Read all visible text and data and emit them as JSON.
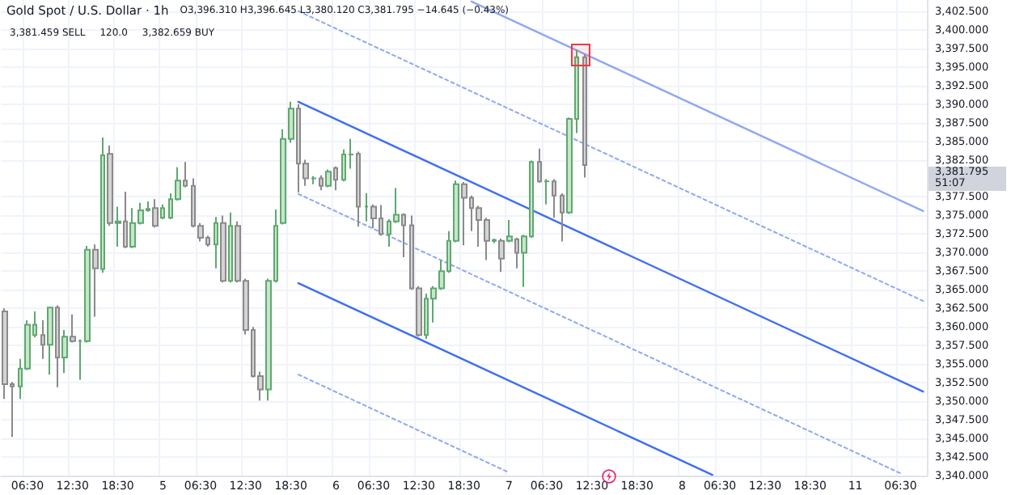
{
  "chart_data": {
    "type": "candlestick",
    "title": "Gold Spot / U.S. Dollar · 1h",
    "annotations": [
      "O3,396.310 H3,396.645 L3,380.120 C3,381.795 −14.645 (−0.43%)",
      "3,381.459 SELL",
      "120.0",
      "3,382.659 BUY",
      "3,381.795",
      "51:07"
    ],
    "categories": [
      null,
      null,
      null,
      "06:30",
      null,
      null,
      null,
      null,
      null,
      "12:30",
      null,
      null,
      null,
      null,
      null,
      "18:30",
      null,
      null,
      null,
      null,
      null,
      "5",
      null,
      null,
      null,
      null,
      "06:30",
      null,
      null,
      null,
      null,
      null,
      "12:30",
      null,
      null,
      null,
      null,
      null,
      "18:30",
      null,
      null,
      null,
      null,
      null,
      "6",
      null,
      null,
      null,
      null,
      "06:30",
      null,
      null,
      null,
      null,
      null,
      "12:30",
      null,
      null,
      null,
      null,
      null,
      "18:30",
      null,
      null,
      null,
      null,
      null,
      "7",
      null,
      null,
      null,
      null,
      "06:30",
      null,
      null,
      null,
      null,
      null,
      "12:30",
      null,
      null,
      null,
      null,
      null,
      "18:30",
      null,
      null,
      null,
      null,
      null,
      "8",
      null,
      null,
      null,
      null,
      "06:30",
      null,
      null,
      null,
      null,
      null,
      "12:30",
      null,
      null,
      null,
      null,
      null,
      "18:30",
      null,
      null,
      null,
      null,
      null,
      "11",
      null,
      null,
      null,
      null,
      null,
      "06:30",
      null,
      null,
      null
    ],
    "ohlc": [
      [
        3362.1,
        3362.5,
        3350.3,
        3352.3
      ],
      [
        3352.3,
        3352.6,
        3345.2,
        3352.0
      ],
      [
        3352.0,
        3355.7,
        3350.3,
        3354.4
      ],
      [
        3354.4,
        3360.9,
        3354.2,
        3360.3
      ],
      [
        3358.9,
        3362.1,
        3358.6,
        3360.3
      ],
      [
        3358.9,
        3360.9,
        3355.7,
        3357.6
      ],
      [
        3357.6,
        3362.6,
        3353.6,
        3362.6
      ],
      [
        3362.6,
        3362.9,
        3351.9,
        3355.9
      ],
      [
        3355.9,
        3359.6,
        3353.8,
        3358.7
      ],
      [
        3358.7,
        3361.7,
        3357.9,
        3358.1
      ],
      [
        3358.1,
        3358.3,
        3352.9,
        3358.1
      ],
      [
        3358.1,
        3370.9,
        3357.9,
        3370.4
      ],
      [
        3370.4,
        3371.1,
        3361.4,
        3367.9
      ],
      [
        3367.8,
        3385.5,
        3367.3,
        3383.1
      ],
      [
        3383.3,
        3384.4,
        3373.6,
        3374.0
      ],
      [
        3374.0,
        3376.2,
        3370.8,
        3374.2
      ],
      [
        3374.2,
        3378.2,
        3370.6,
        3370.8
      ],
      [
        3370.8,
        3376.0,
        3370.6,
        3374.0
      ],
      [
        3374.0,
        3376.7,
        3373.8,
        3375.7
      ],
      [
        3375.7,
        3376.9,
        3375.5,
        3375.9
      ],
      [
        3376.0,
        3377.2,
        3373.4,
        3373.6
      ],
      [
        3374.7,
        3376.5,
        3374.5,
        3376.0
      ],
      [
        3374.7,
        3378.0,
        3374.5,
        3377.2
      ],
      [
        3377.2,
        3381.5,
        3377.0,
        3379.7
      ],
      [
        3379.7,
        3382.2,
        3378.8,
        3379.0
      ],
      [
        3379.0,
        3380.0,
        3373.4,
        3373.6
      ],
      [
        3373.6,
        3374.0,
        3371.5,
        3372.0
      ],
      [
        3372.0,
        3372.3,
        3370.8,
        3371.1
      ],
      [
        3371.1,
        3374.8,
        3367.9,
        3374.0
      ],
      [
        3374.0,
        3375.0,
        3366.0,
        3366.2
      ],
      [
        3366.2,
        3375.4,
        3366.0,
        3373.6
      ],
      [
        3373.6,
        3374.2,
        3366.0,
        3366.2
      ],
      [
        3366.2,
        3366.5,
        3359.0,
        3359.6
      ],
      [
        3359.6,
        3360.0,
        3353.2,
        3353.4
      ],
      [
        3353.4,
        3354.0,
        3350.1,
        3351.6
      ],
      [
        3351.6,
        3366.5,
        3350.1,
        3366.2
      ],
      [
        3366.2,
        3375.8,
        3366.0,
        3373.6
      ],
      [
        3374.0,
        3386.6,
        3373.8,
        3385.3
      ],
      [
        3385.3,
        3390.3,
        3384.8,
        3389.4
      ],
      [
        3389.4,
        3390.0,
        3378.1,
        3382.0
      ],
      [
        3382.0,
        3382.5,
        3379.0,
        3380.0
      ],
      [
        3380.0,
        3380.3,
        3379.2,
        3380.0
      ],
      [
        3380.0,
        3380.4,
        3378.4,
        3379.0
      ],
      [
        3379.0,
        3381.2,
        3378.8,
        3380.9
      ],
      [
        3381.4,
        3381.6,
        3378.4,
        3379.8
      ],
      [
        3379.8,
        3383.9,
        3379.6,
        3383.2
      ],
      [
        3383.2,
        3385.3,
        3381.3,
        3383.2
      ],
      [
        3383.3,
        3383.6,
        3373.5,
        3376.2
      ],
      [
        3376.2,
        3378.0,
        3374.2,
        3376.2
      ],
      [
        3376.2,
        3376.5,
        3373.3,
        3374.6
      ],
      [
        3374.6,
        3376.4,
        3372.3,
        3372.5
      ],
      [
        3372.5,
        3374.5,
        3370.8,
        3374.2
      ],
      [
        3374.2,
        3378.7,
        3374.0,
        3375.1
      ],
      [
        3375.1,
        3375.3,
        3369.4,
        3373.7
      ],
      [
        3373.7,
        3375.0,
        3365.0,
        3365.2
      ],
      [
        3365.2,
        3365.5,
        3358.7,
        3358.9
      ],
      [
        3358.9,
        3364.5,
        3358.4,
        3363.8
      ],
      [
        3363.8,
        3365.5,
        3360.6,
        3365.2
      ],
      [
        3365.2,
        3369.0,
        3365.0,
        3367.5
      ],
      [
        3367.5,
        3372.9,
        3367.3,
        3371.6
      ],
      [
        3371.6,
        3379.7,
        3371.4,
        3379.2
      ],
      [
        3379.2,
        3379.5,
        3371.0,
        3377.4
      ],
      [
        3377.4,
        3377.7,
        3372.9,
        3376.0
      ],
      [
        3376.0,
        3376.3,
        3370.8,
        3374.4
      ],
      [
        3374.4,
        3374.7,
        3369.0,
        3371.6
      ],
      [
        3371.6,
        3371.9,
        3371.3,
        3371.7
      ],
      [
        3371.6,
        3371.9,
        3367.4,
        3369.2
      ],
      [
        3371.6,
        3374.4,
        3371.4,
        3372.2
      ],
      [
        3371.8,
        3372.0,
        3367.9,
        3370.0
      ],
      [
        3370.0,
        3372.4,
        3365.4,
        3372.2
      ],
      [
        3372.2,
        3382.4,
        3372.0,
        3382.2
      ],
      [
        3382.2,
        3384.0,
        3379.4,
        3379.6
      ],
      [
        3379.6,
        3379.9,
        3376.5,
        3379.6
      ],
      [
        3379.6,
        3379.9,
        3374.7,
        3377.7
      ],
      [
        3377.7,
        3378.0,
        3371.5,
        3375.4
      ],
      [
        3375.4,
        3388.2,
        3375.2,
        3388.0
      ],
      [
        3388.0,
        3397.3,
        3386.1,
        3396.31
      ],
      [
        3396.31,
        3396.645,
        3380.12,
        3381.795
      ],
      null,
      null,
      null,
      null,
      null,
      null,
      null,
      null,
      null,
      null,
      null,
      null,
      null,
      null,
      null,
      null,
      null,
      null,
      null,
      null,
      null,
      null,
      null,
      null,
      null,
      null,
      null,
      null,
      null,
      null,
      null,
      null,
      null,
      null,
      null,
      null,
      null,
      null,
      null,
      null,
      null,
      null,
      null,
      null,
      null
    ],
    "series": [
      {
        "type": "line",
        "color": "#8fa8f2",
        "line_style": "solid",
        "values": [
          null,
          null,
          null,
          null,
          null,
          null,
          null,
          null,
          null,
          null,
          null,
          null,
          null,
          null,
          null,
          null,
          null,
          null,
          null,
          null,
          null,
          null,
          null,
          null,
          null,
          null,
          null,
          null,
          null,
          null,
          null,
          null,
          null,
          null,
          null,
          null,
          null,
          null,
          null,
          null,
          null,
          null,
          null,
          null,
          null,
          null,
          null,
          null,
          null,
          null,
          null,
          null,
          null,
          null,
          null,
          null,
          null,
          null,
          null,
          null,
          null,
          null,
          3403.8,
          null,
          null,
          null,
          null,
          null,
          null,
          null,
          null,
          null,
          null,
          null,
          null,
          null,
          null,
          null,
          null,
          null,
          null,
          null,
          null,
          null,
          null,
          null,
          null,
          null,
          null,
          null,
          null,
          null,
          null,
          null,
          null,
          null,
          null,
          null,
          null,
          null,
          null,
          null,
          null,
          null,
          null,
          null,
          null,
          null,
          null,
          null,
          null,
          null,
          null,
          null,
          null,
          null,
          null,
          null,
          null,
          null,
          null,
          null,
          3375.6
        ]
      },
      {
        "type": "line",
        "color": "#8fa8f2",
        "line_style": "dashed",
        "values": [
          null,
          null,
          null,
          null,
          null,
          null,
          null,
          null,
          null,
          null,
          null,
          null,
          null,
          null,
          null,
          null,
          null,
          null,
          null,
          null,
          null,
          null,
          null,
          null,
          null,
          null,
          null,
          null,
          null,
          null,
          null,
          null,
          null,
          null,
          null,
          null,
          null,
          null,
          null,
          3402.5,
          null,
          null,
          null,
          null,
          null,
          null,
          null,
          null,
          null,
          null,
          null,
          null,
          null,
          null,
          null,
          null,
          null,
          null,
          null,
          null,
          null,
          null,
          null,
          null,
          null,
          null,
          null,
          null,
          null,
          null,
          null,
          null,
          null,
          null,
          null,
          null,
          null,
          null,
          null,
          null,
          null,
          null,
          null,
          null,
          null,
          null,
          null,
          null,
          null,
          null,
          null,
          null,
          null,
          null,
          null,
          null,
          null,
          null,
          null,
          null,
          null,
          null,
          null,
          null,
          null,
          null,
          null,
          null,
          null,
          null,
          null,
          null,
          null,
          null,
          null,
          null,
          null,
          null,
          null,
          null,
          null,
          null,
          3363.5
        ]
      },
      {
        "type": "line",
        "color": "#3d6ef5",
        "line_style": "solid",
        "values": [
          null,
          null,
          null,
          null,
          null,
          null,
          null,
          null,
          null,
          null,
          null,
          null,
          null,
          null,
          null,
          null,
          null,
          null,
          null,
          null,
          null,
          null,
          null,
          null,
          null,
          null,
          null,
          null,
          null,
          null,
          null,
          null,
          null,
          null,
          null,
          null,
          null,
          null,
          null,
          3390.3,
          null,
          null,
          null,
          null,
          null,
          null,
          null,
          null,
          null,
          null,
          null,
          null,
          null,
          null,
          null,
          null,
          null,
          null,
          null,
          null,
          null,
          null,
          null,
          null,
          null,
          null,
          null,
          null,
          null,
          null,
          null,
          null,
          null,
          null,
          null,
          null,
          null,
          null,
          null,
          null,
          null,
          null,
          null,
          null,
          null,
          null,
          null,
          null,
          null,
          null,
          null,
          null,
          null,
          null,
          null,
          null,
          null,
          null,
          null,
          null,
          null,
          null,
          null,
          null,
          null,
          null,
          null,
          null,
          null,
          null,
          null,
          null,
          null,
          null,
          null,
          null,
          null,
          null,
          null,
          null,
          null,
          null,
          3351.3
        ]
      },
      {
        "type": "line",
        "color": "#8fa8f2",
        "line_style": "dashed",
        "values": [
          null,
          null,
          null,
          null,
          null,
          null,
          null,
          null,
          null,
          null,
          null,
          null,
          null,
          null,
          null,
          null,
          null,
          null,
          null,
          null,
          null,
          null,
          null,
          null,
          null,
          null,
          null,
          null,
          null,
          null,
          null,
          null,
          null,
          null,
          null,
          null,
          null,
          null,
          null,
          3377.9,
          null,
          null,
          null,
          null,
          null,
          null,
          null,
          null,
          null,
          null,
          null,
          null,
          null,
          null,
          null,
          null,
          null,
          null,
          null,
          null,
          null,
          null,
          null,
          null,
          null,
          null,
          null,
          null,
          null,
          null,
          null,
          null,
          null,
          null,
          null,
          null,
          null,
          null,
          null,
          null,
          null,
          null,
          null,
          null,
          null,
          null,
          null,
          null,
          null,
          null,
          null,
          null,
          null,
          null,
          null,
          null,
          null,
          null,
          null,
          null,
          null,
          null,
          null,
          null,
          null,
          null,
          null,
          null,
          null,
          null,
          null,
          null,
          null,
          null,
          null,
          null,
          null,
          null,
          null,
          3340.3,
          null,
          null,
          null
        ]
      },
      {
        "type": "line",
        "color": "#3d6ef5",
        "line_style": "solid",
        "values": [
          null,
          null,
          null,
          null,
          null,
          null,
          null,
          null,
          null,
          null,
          null,
          null,
          null,
          null,
          null,
          null,
          null,
          null,
          null,
          null,
          null,
          null,
          null,
          null,
          null,
          null,
          null,
          null,
          null,
          null,
          null,
          null,
          null,
          null,
          null,
          null,
          null,
          null,
          null,
          3365.9,
          null,
          null,
          null,
          null,
          null,
          null,
          null,
          null,
          null,
          null,
          null,
          null,
          null,
          null,
          null,
          null,
          null,
          null,
          null,
          null,
          null,
          null,
          null,
          null,
          null,
          null,
          null,
          null,
          null,
          null,
          null,
          null,
          null,
          null,
          null,
          null,
          null,
          null,
          null,
          null,
          null,
          null,
          null,
          null,
          null,
          null,
          null,
          null,
          null,
          null,
          null,
          null,
          null,
          null,
          3340.1,
          null,
          null,
          null,
          null,
          null,
          null,
          null,
          null,
          null,
          null,
          null,
          null,
          null,
          null,
          null,
          null,
          null,
          null,
          null,
          null,
          null,
          null,
          null,
          null,
          null,
          null,
          null,
          null
        ]
      },
      {
        "type": "line",
        "color": "#8fa8f2",
        "line_style": "dashed",
        "values": [
          null,
          null,
          null,
          null,
          null,
          null,
          null,
          null,
          null,
          null,
          null,
          null,
          null,
          null,
          null,
          null,
          null,
          null,
          null,
          null,
          null,
          null,
          null,
          null,
          null,
          null,
          null,
          null,
          null,
          null,
          null,
          null,
          null,
          null,
          null,
          null,
          null,
          null,
          null,
          3353.6,
          null,
          null,
          null,
          null,
          null,
          null,
          null,
          null,
          null,
          null,
          null,
          null,
          null,
          null,
          null,
          null,
          null,
          null,
          null,
          null,
          null,
          null,
          null,
          null,
          null,
          null,
          null,
          3340.4,
          null,
          null,
          null,
          null,
          null,
          null,
          null,
          null,
          null,
          null,
          null,
          null,
          null,
          null,
          null,
          null,
          null,
          null,
          null,
          null,
          null,
          null,
          null,
          null,
          null,
          null,
          null,
          null,
          null,
          null,
          null,
          null,
          null,
          null,
          null,
          null,
          null,
          null,
          null,
          null,
          null,
          null,
          null,
          null,
          null,
          null,
          null,
          null,
          null,
          null,
          null,
          null,
          null,
          null,
          null
        ]
      }
    ],
    "ylim": [
      3340,
      3404
    ],
    "yticks": [
      {
        "value": 3340,
        "label": "3,340.000"
      },
      {
        "value": 3342.5,
        "label": "3,342.500"
      },
      {
        "value": 3345,
        "label": "3,345.000"
      },
      {
        "value": 3347.5,
        "label": "3,347.500"
      },
      {
        "value": 3350,
        "label": "3,350.000"
      },
      {
        "value": 3352.5,
        "label": "3,352.500"
      },
      {
        "value": 3355,
        "label": "3,355.000"
      },
      {
        "value": 3357.5,
        "label": "3,357.500"
      },
      {
        "value": 3360,
        "label": "3,360.000"
      },
      {
        "value": 3362.5,
        "label": "3,362.500"
      },
      {
        "value": 3365,
        "label": "3,365.000"
      },
      {
        "value": 3367.5,
        "label": "3,367.500"
      },
      {
        "value": 3370,
        "label": "3,370.000"
      },
      {
        "value": 3372.5,
        "label": "3,372.500"
      },
      {
        "value": 3375,
        "label": "3,375.000"
      },
      {
        "value": 3377.5,
        "label": "3,377.500"
      },
      {
        "value": 3382.5,
        "label": "3,382.500"
      },
      {
        "value": 3385,
        "label": "3,385.000"
      },
      {
        "value": 3387.5,
        "label": "3,387.500"
      },
      {
        "value": 3390,
        "label": "3,390.000"
      },
      {
        "value": 3392.5,
        "label": "3,392.500"
      },
      {
        "value": 3395,
        "label": "3,395.000"
      },
      {
        "value": 3397.5,
        "label": "3,397.500"
      },
      {
        "value": 3400,
        "label": "3,400.000"
      },
      {
        "value": 3402.5,
        "label": "3,402.500"
      }
    ],
    "grid": true,
    "marker": "none"
  }
}
